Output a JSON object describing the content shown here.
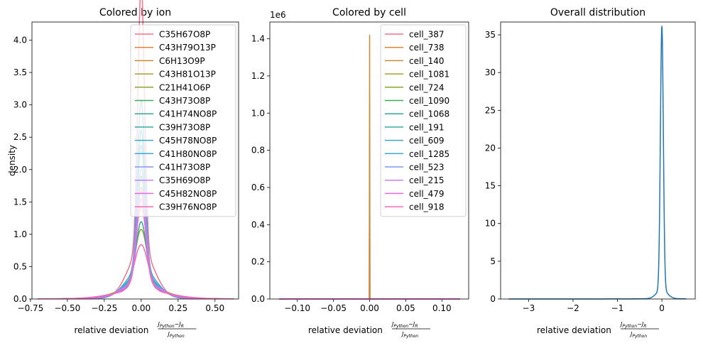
{
  "chart_data": [
    {
      "type": "line",
      "title": "Colored by ion",
      "ylabel": "density",
      "xlabel_text": "relative deviation",
      "xlabel_frac": {
        "num_a": "J",
        "num_a_sub": "Python",
        "num_minus": "−",
        "num_b": "J",
        "num_b_sub": "R",
        "den": "J",
        "den_sub": "Python"
      },
      "xlim": [
        -0.74,
        0.66
      ],
      "ylim": [
        0,
        4.28
      ],
      "xticks": [
        -0.75,
        -0.5,
        -0.25,
        0.0,
        0.25,
        0.5
      ],
      "xtick_labels": [
        "−0.75",
        "−0.50",
        "−0.25",
        "0.00",
        "0.25",
        "0.50"
      ],
      "yticks": [
        0,
        0.5,
        1,
        1.5,
        2,
        2.5,
        3,
        3.5,
        4
      ],
      "ytick_labels": [
        "0.0",
        "0.5",
        "1.0",
        "1.5",
        "2.0",
        "2.5",
        "3.0",
        "3.5",
        "4.0"
      ],
      "legend_position": "top-right",
      "series": [
        {
          "name": "C35H67O8P",
          "color": "#f77189",
          "peak": 4.1,
          "width": 0.022
        },
        {
          "name": "C43H79O13P",
          "color": "#e5823b",
          "peak": 1.45,
          "width": 0.03
        },
        {
          "name": "C6H13O9P",
          "color": "#c98a33",
          "peak": 1.2,
          "width": 0.035
        },
        {
          "name": "C43H81O13P",
          "color": "#ae9d31",
          "peak": 1.3,
          "width": 0.03
        },
        {
          "name": "C21H41O6P",
          "color": "#87a533",
          "peak": 0.9,
          "width": 0.04
        },
        {
          "name": "C43H73O8P",
          "color": "#39ac5f",
          "peak": 1.6,
          "width": 0.028
        },
        {
          "name": "C41H74NO8P",
          "color": "#35a98f",
          "peak": 1.0,
          "width": 0.035
        },
        {
          "name": "C39H73O8P",
          "color": "#36ada4",
          "peak": 2.2,
          "width": 0.025
        },
        {
          "name": "C45H78NO8P",
          "color": "#38a9c5",
          "peak": 2.0,
          "width": 0.026
        },
        {
          "name": "C41H80NO8P",
          "color": "#41a5e1",
          "peak": 2.6,
          "width": 0.024
        },
        {
          "name": "C41H73O8P",
          "color": "#8397f4",
          "peak": 1.7,
          "width": 0.028
        },
        {
          "name": "C35H69O8P",
          "color": "#c67ef4",
          "peak": 1.4,
          "width": 0.03
        },
        {
          "name": "C45H82NO8P",
          "color": "#ef68e2",
          "peak": 1.3,
          "width": 0.03
        },
        {
          "name": "C39H76NO8P",
          "color": "#f66bb2",
          "peak": 0.7,
          "width": 0.045
        }
      ]
    },
    {
      "type": "line",
      "title": "Colored by cell",
      "offset_text": "1e6",
      "xlabel_text": "relative deviation",
      "xlim": [
        -0.138,
        0.137
      ],
      "ylim": [
        0,
        1.49
      ],
      "xticks": [
        -0.1,
        -0.05,
        0.0,
        0.05,
        0.1
      ],
      "xtick_labels": [
        "−0.10",
        "−0.05",
        "0.00",
        "0.05",
        "0.10"
      ],
      "yticks": [
        0,
        0.2,
        0.4,
        0.6,
        0.8,
        1.0,
        1.2,
        1.4
      ],
      "ytick_labels": [
        "0.0",
        "0.2",
        "0.4",
        "0.6",
        "0.8",
        "1.0",
        "1.2",
        "1.4"
      ],
      "legend_position": "top-right",
      "spike_x": 0.0,
      "baseline_span": [
        -0.125,
        0.125
      ],
      "series": [
        {
          "name": "cell_387",
          "color": "#f77189",
          "peak": 0.89
        },
        {
          "name": "cell_738",
          "color": "#e5823b",
          "peak": 0.0
        },
        {
          "name": "cell_140",
          "color": "#c98a33",
          "peak": 1.42
        },
        {
          "name": "cell_1081",
          "color": "#ae9d31",
          "peak": 0.0
        },
        {
          "name": "cell_724",
          "color": "#87a533",
          "peak": 0.0
        },
        {
          "name": "cell_1090",
          "color": "#39ac5f",
          "peak": 0.0
        },
        {
          "name": "cell_1068",
          "color": "#35a98f",
          "peak": 0.0
        },
        {
          "name": "cell_191",
          "color": "#36ada4",
          "peak": 0.0
        },
        {
          "name": "cell_609",
          "color": "#38a9c5",
          "peak": 0.0
        },
        {
          "name": "cell_1285",
          "color": "#41a5e1",
          "peak": 0.0
        },
        {
          "name": "cell_523",
          "color": "#8397f4",
          "peak": 0.0
        },
        {
          "name": "cell_215",
          "color": "#c67ef4",
          "peak": 0.0
        },
        {
          "name": "cell_479",
          "color": "#ef68e2",
          "peak": 0.0
        },
        {
          "name": "cell_918",
          "color": "#f66bb2",
          "peak": 0.0
        }
      ]
    },
    {
      "type": "line",
      "title": "Overall distribution",
      "xlabel_text": "relative deviation",
      "xlim": [
        -3.63,
        0.75
      ],
      "ylim": [
        0,
        36.7
      ],
      "xticks": [
        -3,
        -2,
        -1,
        0
      ],
      "xtick_labels": [
        "−3",
        "−2",
        "−1",
        "0"
      ],
      "yticks": [
        0,
        5,
        10,
        15,
        20,
        25,
        30,
        35
      ],
      "ytick_labels": [
        "0",
        "5",
        "10",
        "15",
        "20",
        "25",
        "30",
        "35"
      ],
      "series": [
        {
          "color": "#1f77b4",
          "peak": 34.9,
          "width": 0.033,
          "span": [
            -3.45,
            0.55
          ]
        }
      ]
    }
  ]
}
